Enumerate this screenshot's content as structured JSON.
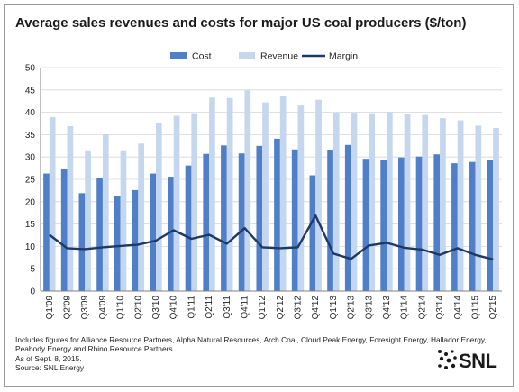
{
  "chart_data": {
    "type": "bar",
    "title": "Average sales revenues and costs for major US coal producers ($/ton)",
    "categories": [
      "Q1'09",
      "Q2'09",
      "Q3'09",
      "Q4'09",
      "Q1'10",
      "Q2'10",
      "Q3'10",
      "Q4'10",
      "Q1'11",
      "Q2'11",
      "Q3'11",
      "Q4'11",
      "Q1'12",
      "Q2'12",
      "Q3'12",
      "Q4'12",
      "Q1'13",
      "Q2'13",
      "Q3'13",
      "Q4'13",
      "Q1'14",
      "Q2'14",
      "Q3'14",
      "Q4'14",
      "Q1'15",
      "Q2'15"
    ],
    "series": [
      {
        "name": "Cost",
        "kind": "bar",
        "color": "#4f7fc8",
        "values": [
          26.3,
          27.3,
          21.9,
          25.2,
          21.2,
          22.6,
          26.3,
          25.6,
          28.1,
          30.7,
          32.6,
          30.8,
          32.5,
          34.1,
          31.7,
          25.9,
          31.6,
          32.7,
          29.6,
          29.3,
          29.9,
          30.1,
          30.6,
          28.6,
          28.9,
          29.4
        ]
      },
      {
        "name": "Revenue",
        "kind": "bar",
        "color": "#c4d7ef",
        "values": [
          38.9,
          36.9,
          31.3,
          35.0,
          31.3,
          33.0,
          37.6,
          39.2,
          39.8,
          43.3,
          43.2,
          44.9,
          42.2,
          43.7,
          41.5,
          42.8,
          40.0,
          39.9,
          39.8,
          40.1,
          39.6,
          39.4,
          38.7,
          38.2,
          37.0,
          36.5
        ]
      },
      {
        "name": "Margin",
        "kind": "line",
        "color": "#1f3864",
        "values": [
          12.6,
          9.6,
          9.4,
          9.8,
          10.1,
          10.4,
          11.3,
          13.6,
          11.7,
          12.6,
          10.6,
          14.1,
          9.8,
          9.6,
          9.8,
          16.9,
          8.4,
          7.2,
          10.2,
          10.8,
          9.7,
          9.3,
          8.1,
          9.6,
          8.1,
          7.1
        ]
      }
    ],
    "y_ticks": [
      0,
      5,
      10,
      15,
      20,
      25,
      30,
      35,
      40,
      45,
      50
    ],
    "ylim": [
      0,
      50
    ],
    "grid": true,
    "legend": "top-center"
  },
  "notes": [
    "Includes figures for Alliance Resource Partners, Alpha Natural Resources, Arch Coal, Cloud Peak Energy, Foresight Energy, Hallador Energy,",
    "Peabody Energy and Rhino Resource Partners",
    "As of Sept. 8, 2015.",
    "Source: SNL Energy"
  ],
  "logo": {
    "text": "SNL",
    "icon": "snl-dots-icon"
  }
}
